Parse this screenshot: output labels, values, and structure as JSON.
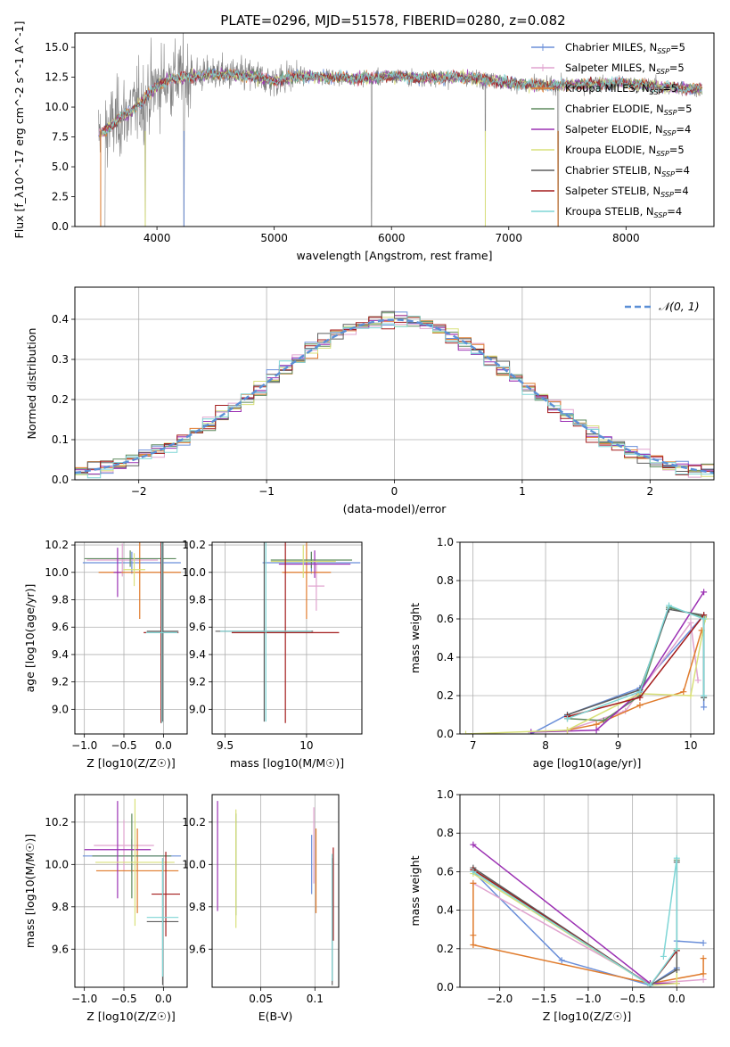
{
  "title": "PLATE=0296, MJD=51578, FIBERID=0280, z=0.082",
  "colors": {
    "chabrier_miles": "#6b8fd9",
    "salpeter_miles": "#e0a3cf",
    "kroupa_miles": "#e07b2c",
    "chabrier_elodie": "#5e8a5e",
    "salpeter_elodie": "#9b30b3",
    "kroupa_elodie": "#d9e07a",
    "chabrier_stelib": "#5f5f5f",
    "salpeter_stelib": "#a31c1c",
    "kroupa_stelib": "#7fd6d6",
    "normal": "#5b8fd6",
    "observed": "#808080"
  },
  "chart_data": [
    {
      "id": "spectrum",
      "type": "line",
      "xlabel": "wavelength [Angstrom, rest frame]",
      "ylabel": "Flux [f_λ10^-17 erg cm^-2 s^-1 A^-1]",
      "xlim": [
        3300,
        8750
      ],
      "ylim": [
        0,
        16.2
      ],
      "xticks": [
        4000,
        5000,
        6000,
        7000,
        8000
      ],
      "yticks": [
        0.0,
        2.5,
        5.0,
        7.5,
        10.0,
        12.5,
        15.0
      ],
      "legend_position": "top-right",
      "legend": [
        {
          "label": "Chabrier MILES, N",
          "sub": "SSP",
          "tail": "=5",
          "color": "#6b8fd9",
          "marker": "+"
        },
        {
          "label": "Salpeter MILES, N",
          "sub": "SSP",
          "tail": "=5",
          "color": "#e0a3cf",
          "marker": "+"
        },
        {
          "label": "Kroupa MILES, N",
          "sub": "SSP",
          "tail": "=5",
          "color": "#e07b2c",
          "marker": "+"
        },
        {
          "label": "Chabrier ELODIE, N",
          "sub": "SSP",
          "tail": "=5",
          "color": "#5e8a5e",
          "marker": ""
        },
        {
          "label": "Salpeter ELODIE, N",
          "sub": "SSP",
          "tail": "=4",
          "color": "#9b30b3",
          "marker": ""
        },
        {
          "label": "Kroupa ELODIE, N",
          "sub": "SSP",
          "tail": "=5",
          "color": "#d9e07a",
          "marker": ""
        },
        {
          "label": "Chabrier STELIB, N",
          "sub": "SSP",
          "tail": "=4",
          "color": "#5f5f5f",
          "marker": ""
        },
        {
          "label": "Salpeter STELIB, N",
          "sub": "SSP",
          "tail": "=4",
          "color": "#a31c1c",
          "marker": ""
        },
        {
          "label": "Kroupa STELIB, N",
          "sub": "SSP",
          "tail": "=4",
          "color": "#7fd6d6",
          "marker": ""
        }
      ],
      "model_continuum": [
        [
          3500,
          7.6
        ],
        [
          3600,
          8.4
        ],
        [
          3700,
          9.2
        ],
        [
          3800,
          9.8
        ],
        [
          3900,
          10.8
        ],
        [
          4000,
          11.8
        ],
        [
          4100,
          12.3
        ],
        [
          4300,
          12.6
        ],
        [
          4500,
          12.8
        ],
        [
          4800,
          12.6
        ],
        [
          5000,
          12.2
        ],
        [
          5200,
          12.6
        ],
        [
          5500,
          12.5
        ],
        [
          5800,
          12.4
        ],
        [
          6000,
          12.6
        ],
        [
          6300,
          12.4
        ],
        [
          6600,
          12.5
        ],
        [
          6800,
          12.3
        ],
        [
          7000,
          12.0
        ],
        [
          7300,
          11.8
        ],
        [
          7600,
          11.9
        ],
        [
          8000,
          12.0
        ],
        [
          8300,
          11.7
        ],
        [
          8600,
          11.5
        ]
      ],
      "observed_range": [
        3500,
        8650
      ]
    },
    {
      "id": "residuals",
      "type": "line",
      "xlabel": "(data-model)/error",
      "ylabel": "Normed distribution",
      "xlim": [
        -2.5,
        2.5
      ],
      "ylim": [
        0,
        0.48
      ],
      "xticks": [
        -2,
        -1,
        0,
        1,
        2
      ],
      "yticks": [
        0.0,
        0.1,
        0.2,
        0.3,
        0.4
      ],
      "legend_position": "top-right",
      "legend": [
        {
          "label": "𝒩(0, 1)",
          "color": "#5b8fd6",
          "style": "dashed"
        }
      ]
    },
    {
      "id": "age-vs-z",
      "type": "scatter",
      "xlabel": "Z [log10(Z/Z☉)]",
      "ylabel": "age  [log10(age/yr)]",
      "xlim": [
        -1.12,
        0.3
      ],
      "ylim": [
        8.82,
        10.22
      ],
      "xticks": [
        -1.0,
        -0.5,
        0.0
      ],
      "xtick_labels": [
        "−1.0",
        "−0.5",
        "0.0"
      ],
      "yticks": [
        9.0,
        9.2,
        9.4,
        9.6,
        9.8,
        10.0,
        10.2
      ],
      "errorbars": [
        {
          "color": "#6b8fd9",
          "x": -0.4,
          "y": 10.07,
          "xerr": 0.62,
          "yerr": 0.08
        },
        {
          "color": "#e0a3cf",
          "x": -0.52,
          "y": 10.09,
          "xerr": 0.45,
          "yerr": 0.12
        },
        {
          "color": "#e07b2c",
          "x": -0.3,
          "y": 10.0,
          "xerr": 0.52,
          "yerr": 0.34
        },
        {
          "color": "#5e8a5e",
          "x": -0.42,
          "y": 10.1,
          "xerr": 0.58,
          "yerr": 0.06
        },
        {
          "color": "#9b30b3",
          "x": -0.58,
          "y": 10.0,
          "xerr": 0.05,
          "yerr": 0.18
        },
        {
          "color": "#d9e07a",
          "x": -0.37,
          "y": 10.02,
          "xerr": 0.14,
          "yerr": 0.12
        },
        {
          "color": "#5f5f5f",
          "x": -0.01,
          "y": 9.57,
          "xerr": 0.2,
          "yerr": 0.66
        },
        {
          "color": "#a31c1c",
          "x": -0.03,
          "y": 9.56,
          "xerr": 0.22,
          "yerr": 0.66
        },
        {
          "color": "#7fd6d6",
          "x": -0.02,
          "y": 9.56,
          "xerr": 0.2,
          "yerr": 0.66
        }
      ]
    },
    {
      "id": "age-vs-mass",
      "type": "scatter",
      "xlabel": "mass [log10(M/M☉)]",
      "ylabel": "",
      "xlim": [
        9.42,
        10.34
      ],
      "ylim": [
        8.82,
        10.22
      ],
      "xticks": [
        9.5,
        10.0
      ],
      "yticks": [
        9.0,
        9.2,
        9.4,
        9.6,
        9.8,
        10.0,
        10.2
      ],
      "errorbars": [
        {
          "color": "#6b8fd9",
          "x": 10.03,
          "y": 10.07,
          "xerr": 0.3,
          "yerr": 0.08
        },
        {
          "color": "#e0a3cf",
          "x": 10.06,
          "y": 9.9,
          "xerr": 0.05,
          "yerr": 0.18
        },
        {
          "color": "#e07b2c",
          "x": 10.0,
          "y": 10.0,
          "xerr": 0.15,
          "yerr": 0.34
        },
        {
          "color": "#5e8a5e",
          "x": 10.03,
          "y": 10.09,
          "xerr": 0.25,
          "yerr": 0.06
        },
        {
          "color": "#9b30b3",
          "x": 10.05,
          "y": 10.06,
          "xerr": 0.22,
          "yerr": 0.1
        },
        {
          "color": "#d9e07a",
          "x": 9.98,
          "y": 10.08,
          "xerr": 0.2,
          "yerr": 0.12
        },
        {
          "color": "#5f5f5f",
          "x": 9.74,
          "y": 9.57,
          "xerr": 0.3,
          "yerr": 0.66
        },
        {
          "color": "#a31c1c",
          "x": 9.87,
          "y": 9.56,
          "xerr": 0.33,
          "yerr": 0.66
        },
        {
          "color": "#7fd6d6",
          "x": 9.75,
          "y": 9.57,
          "xerr": 0.28,
          "yerr": 0.66
        }
      ]
    },
    {
      "id": "mass-weight-vs-age",
      "type": "line",
      "xlabel": "age  [log10(age/yr)]",
      "ylabel": "mass weight",
      "xlim": [
        6.82,
        10.32
      ],
      "ylim": [
        0,
        1.0
      ],
      "xticks": [
        7,
        8,
        9,
        10
      ],
      "yticks": [
        0.0,
        0.2,
        0.4,
        0.6,
        0.8,
        1.0
      ],
      "series": [
        {
          "color": "#6b8fd9",
          "points": [
            [
              7.8,
              0.0
            ],
            [
              8.3,
              0.1
            ],
            [
              9.3,
              0.24
            ],
            [
              10.18,
              0.62
            ],
            [
              10.18,
              0.14
            ]
          ]
        },
        {
          "color": "#e0a3cf",
          "points": [
            [
              8.3,
              0.02
            ],
            [
              9.1,
              0.12
            ],
            [
              10.0,
              0.58
            ],
            [
              10.1,
              0.28
            ]
          ]
        },
        {
          "color": "#e07b2c",
          "points": [
            [
              8.3,
              0.02
            ],
            [
              8.7,
              0.05
            ],
            [
              9.3,
              0.15
            ],
            [
              9.9,
              0.22
            ],
            [
              10.15,
              0.54
            ]
          ]
        },
        {
          "color": "#5e8a5e",
          "points": [
            [
              8.3,
              0.08
            ],
            [
              8.8,
              0.07
            ],
            [
              9.3,
              0.2
            ],
            [
              9.7,
              0.66
            ],
            [
              10.18,
              0.61
            ],
            [
              10.18,
              0.19
            ]
          ]
        },
        {
          "color": "#9b30b3",
          "points": [
            [
              7.8,
              0.01
            ],
            [
              8.7,
              0.02
            ],
            [
              9.3,
              0.22
            ],
            [
              10.18,
              0.74
            ]
          ]
        },
        {
          "color": "#d9e07a",
          "points": [
            [
              6.9,
              0.0
            ],
            [
              8.3,
              0.02
            ],
            [
              9.3,
              0.21
            ],
            [
              10.0,
              0.2
            ],
            [
              10.2,
              0.6
            ]
          ]
        },
        {
          "color": "#5f5f5f",
          "points": [
            [
              8.3,
              0.1
            ],
            [
              9.3,
              0.23
            ],
            [
              9.7,
              0.65
            ],
            [
              10.18,
              0.62
            ],
            [
              10.18,
              0.19
            ]
          ]
        },
        {
          "color": "#a31c1c",
          "points": [
            [
              8.3,
              0.09
            ],
            [
              9.3,
              0.19
            ],
            [
              10.18,
              0.62
            ]
          ]
        },
        {
          "color": "#7fd6d6",
          "points": [
            [
              8.3,
              0.08
            ],
            [
              9.3,
              0.22
            ],
            [
              9.7,
              0.67
            ],
            [
              10.18,
              0.6
            ],
            [
              10.18,
              0.2
            ]
          ]
        }
      ]
    },
    {
      "id": "mass-vs-z",
      "type": "scatter",
      "xlabel": "Z [log10(Z/Z☉)]",
      "ylabel": "mass [log10(M/M☉)]",
      "xlim": [
        -1.12,
        0.3
      ],
      "ylim": [
        9.42,
        10.33
      ],
      "xticks": [
        -1.0,
        -0.5,
        0.0
      ],
      "xtick_labels": [
        "−1.0",
        "−0.5",
        "0.0"
      ],
      "yticks": [
        9.6,
        9.8,
        10.0,
        10.2
      ],
      "errorbars": [
        {
          "color": "#6b8fd9",
          "x": -0.4,
          "y": 10.04,
          "xerr": 0.62,
          "yerr": 0.08
        },
        {
          "color": "#e0a3cf",
          "x": -0.5,
          "y": 10.09,
          "xerr": 0.38,
          "yerr": 0.12
        },
        {
          "color": "#e07b2c",
          "x": -0.33,
          "y": 9.97,
          "xerr": 0.52,
          "yerr": 0.2
        },
        {
          "color": "#5e8a5e",
          "x": -0.4,
          "y": 10.04,
          "xerr": 0.5,
          "yerr": 0.2
        },
        {
          "color": "#9b30b3",
          "x": -0.58,
          "y": 10.07,
          "xerr": 0.42,
          "yerr": 0.23
        },
        {
          "color": "#d9e07a",
          "x": -0.36,
          "y": 10.01,
          "xerr": 0.5,
          "yerr": 0.3
        },
        {
          "color": "#5f5f5f",
          "x": -0.01,
          "y": 9.73,
          "xerr": 0.2,
          "yerr": 0.3
        },
        {
          "color": "#a31c1c",
          "x": 0.03,
          "y": 9.86,
          "xerr": 0.18,
          "yerr": 0.2
        },
        {
          "color": "#7fd6d6",
          "x": -0.01,
          "y": 9.75,
          "xerr": 0.2,
          "yerr": 0.28
        }
      ]
    },
    {
      "id": "mass-vs-ebv",
      "type": "scatter",
      "xlabel": "E(B-V)",
      "ylabel": "",
      "xlim": [
        0.005,
        0.122
      ],
      "ylim": [
        9.42,
        10.33
      ],
      "xticks": [
        0.05,
        0.1
      ],
      "yticks": [
        9.6,
        9.8,
        10.0,
        10.2
      ],
      "errorbars": [
        {
          "color": "#6b8fd9",
          "x": 0.097,
          "y": 10.0,
          "xerr": 0,
          "yerr": 0.14
        },
        {
          "color": "#e0a3cf",
          "x": 0.099,
          "y": 10.09,
          "xerr": 0,
          "yerr": 0.18
        },
        {
          "color": "#e07b2c",
          "x": 0.101,
          "y": 9.97,
          "xerr": 0,
          "yerr": 0.2
        },
        {
          "color": "#5e8a5e",
          "x": 0.027,
          "y": 10.0,
          "xerr": 0,
          "yerr": 0.24
        },
        {
          "color": "#9b30b3",
          "x": 0.01,
          "y": 10.04,
          "xerr": 0,
          "yerr": 0.26
        },
        {
          "color": "#d9e07a",
          "x": 0.027,
          "y": 9.98,
          "xerr": 0,
          "yerr": 0.28
        },
        {
          "color": "#5f5f5f",
          "x": 0.116,
          "y": 9.73,
          "xerr": 0,
          "yerr": 0.3
        },
        {
          "color": "#a31c1c",
          "x": 0.117,
          "y": 9.86,
          "xerr": 0,
          "yerr": 0.22
        },
        {
          "color": "#7fd6d6",
          "x": 0.116,
          "y": 9.75,
          "xerr": 0,
          "yerr": 0.3
        }
      ]
    },
    {
      "id": "mass-weight-vs-z",
      "type": "line",
      "xlabel": "Z [log10(Z/Z☉)]",
      "ylabel": "mass weight",
      "xlim": [
        -2.45,
        0.42
      ],
      "ylim": [
        0,
        1.0
      ],
      "xticks": [
        -2.0,
        -1.5,
        -1.0,
        -0.5,
        0.0
      ],
      "xtick_labels": [
        "−2.0",
        "−1.5",
        "−1.0",
        "−0.5",
        "0.0"
      ],
      "yticks": [
        0.0,
        0.2,
        0.4,
        0.6,
        0.8,
        1.0
      ],
      "series": [
        {
          "color": "#6b8fd9",
          "points": [
            [
              -2.3,
              0.6
            ],
            [
              -1.3,
              0.14
            ],
            [
              -0.3,
              0.01
            ],
            [
              0.0,
              0.1
            ],
            [
              0.0,
              0.24
            ],
            [
              0.3,
              0.23
            ]
          ]
        },
        {
          "color": "#e0a3cf",
          "points": [
            [
              -2.3,
              0.54
            ],
            [
              -0.3,
              0.02
            ],
            [
              0.3,
              0.04
            ]
          ]
        },
        {
          "color": "#e07b2c",
          "points": [
            [
              -2.3,
              0.54
            ],
            [
              -2.3,
              0.27
            ],
            [
              -2.3,
              0.22
            ],
            [
              -0.3,
              0.02
            ],
            [
              0.3,
              0.07
            ],
            [
              0.3,
              0.15
            ]
          ]
        },
        {
          "color": "#5e8a5e",
          "points": [
            [
              -2.3,
              0.61
            ],
            [
              -0.3,
              0.01
            ],
            [
              0.0,
              0.19
            ],
            [
              0.0,
              0.66
            ]
          ]
        },
        {
          "color": "#9b30b3",
          "points": [
            [
              -2.3,
              0.74
            ],
            [
              -0.3,
              0.02
            ],
            [
              0.0,
              0.02
            ]
          ]
        },
        {
          "color": "#d9e07a",
          "points": [
            [
              -2.3,
              0.59
            ],
            [
              -0.3,
              0.01
            ],
            [
              0.0,
              0.02
            ],
            [
              0.0,
              0.2
            ]
          ]
        },
        {
          "color": "#5f5f5f",
          "points": [
            [
              -2.3,
              0.62
            ],
            [
              -0.3,
              0.01
            ],
            [
              0.0,
              0.09
            ],
            [
              0.0,
              0.65
            ]
          ]
        },
        {
          "color": "#a31c1c",
          "points": [
            [
              -2.3,
              0.61
            ],
            [
              -0.3,
              0.01
            ],
            [
              0.0,
              0.19
            ]
          ]
        },
        {
          "color": "#7fd6d6",
          "points": [
            [
              -2.3,
              0.6
            ],
            [
              -0.3,
              0.01
            ],
            [
              0.0,
              0.2
            ],
            [
              0.0,
              0.67
            ],
            [
              -0.15,
              0.16
            ]
          ]
        }
      ]
    }
  ]
}
